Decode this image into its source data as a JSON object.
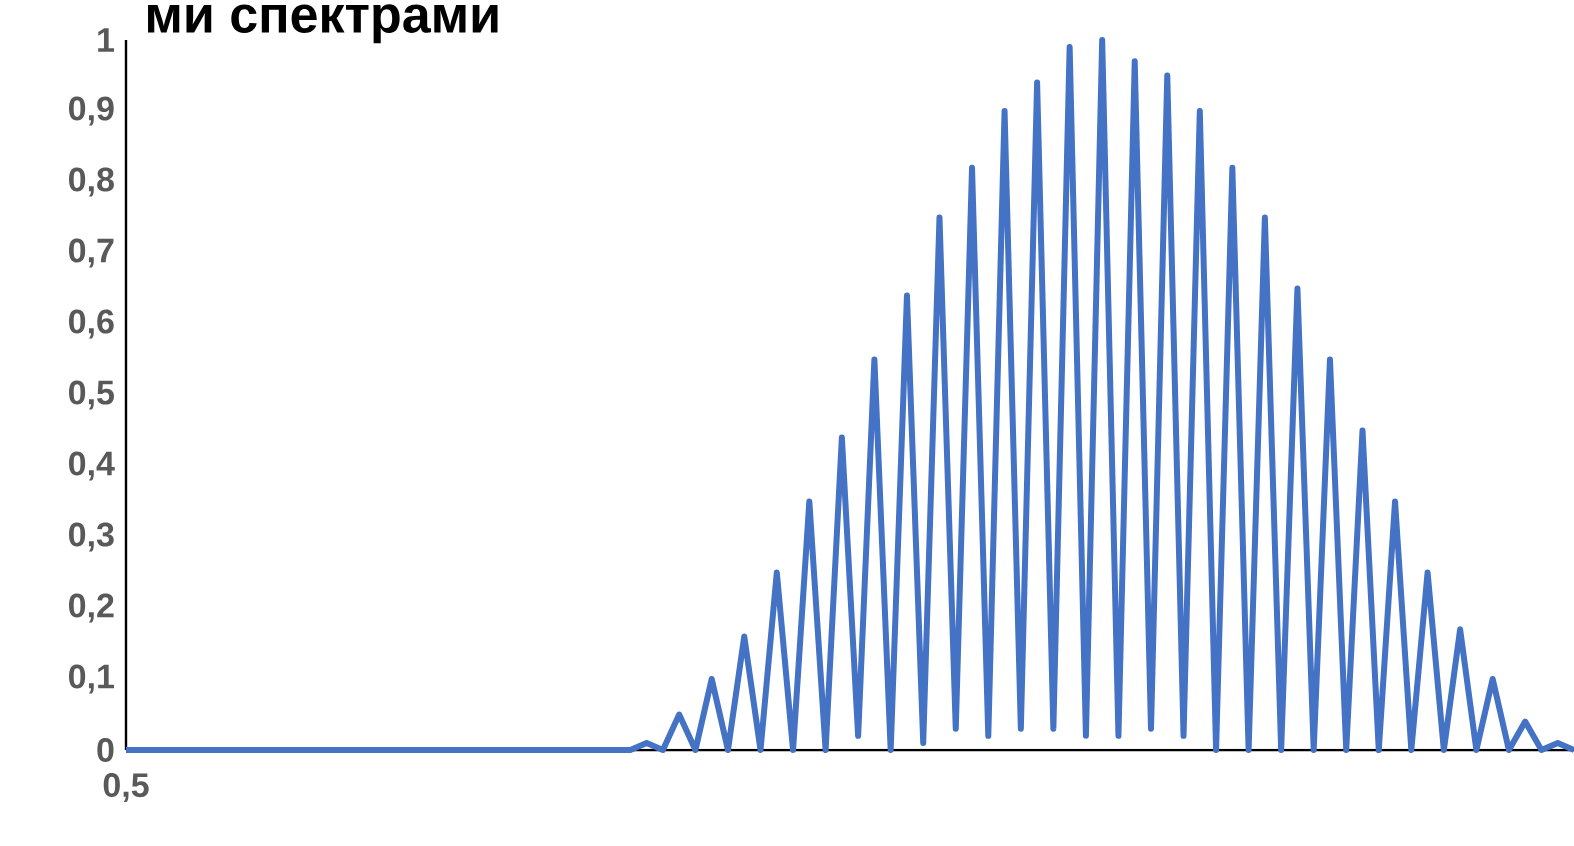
{
  "chart_data": {
    "type": "line",
    "title": "ми спектрами",
    "categories": [
      "0,5",
      null,
      null,
      null,
      null,
      null,
      null,
      null,
      null,
      null,
      null,
      null,
      null,
      null,
      null,
      null,
      null,
      null,
      null,
      null,
      null,
      null,
      null,
      null,
      null,
      null,
      null,
      null,
      null,
      null,
      null,
      null,
      null,
      null,
      null,
      null,
      null,
      null,
      null,
      null,
      null,
      null,
      null,
      null,
      null,
      null,
      null,
      null,
      null,
      null,
      null,
      null,
      null,
      null,
      null,
      null,
      null,
      null,
      null,
      null,
      null,
      null,
      null,
      null,
      null,
      null,
      null,
      null,
      null,
      null,
      null,
      null,
      null,
      null,
      null,
      null,
      null,
      null,
      null,
      null,
      null,
      null,
      null,
      null,
      null,
      null,
      null,
      null,
      null,
      null
    ],
    "series": [
      {
        "color": "#4472c4",
        "values": [
          0,
          0,
          0,
          0,
          0,
          0,
          0,
          0,
          0,
          0,
          0,
          0,
          0,
          0,
          0,
          0,
          0,
          0,
          0,
          0,
          0,
          0,
          0,
          0,
          0,
          0,
          0,
          0,
          0,
          0,
          0,
          0,
          0.01,
          0,
          0.05,
          0,
          0.1,
          0,
          0.16,
          0,
          0.25,
          0,
          0.35,
          0,
          0.44,
          0.02,
          0.55,
          0,
          0.64,
          0.01,
          0.75,
          0.03,
          0.82,
          0.02,
          0.9,
          0.03,
          0.94,
          0.03,
          0.99,
          0.02,
          1.0,
          0.02,
          0.97,
          0.03,
          0.95,
          0.02,
          0.9,
          0,
          0.82,
          0,
          0.75,
          0,
          0.65,
          0,
          0.55,
          0,
          0.45,
          0,
          0.35,
          0,
          0.25,
          0,
          0.17,
          0,
          0.1,
          0,
          0.04,
          0,
          0.01,
          0
        ]
      }
    ],
    "ylim": [
      0,
      1
    ],
    "yticks": [
      0,
      {
        "value": 0.1,
        "label": "0,1"
      },
      {
        "value": 0.2,
        "label": "0,2"
      },
      {
        "value": 0.3,
        "label": "0,3"
      },
      {
        "value": 0.4,
        "label": "0,4"
      },
      {
        "value": 0.5,
        "label": "0,5"
      },
      {
        "value": 0.6,
        "label": "0,6"
      },
      {
        "value": 0.7,
        "label": "0,7"
      },
      {
        "value": 0.8,
        "label": "0,8"
      },
      {
        "value": 0.9,
        "label": "0,9"
      },
      1
    ],
    "grid": false,
    "marker": "none",
    "line_style": "solid"
  }
}
